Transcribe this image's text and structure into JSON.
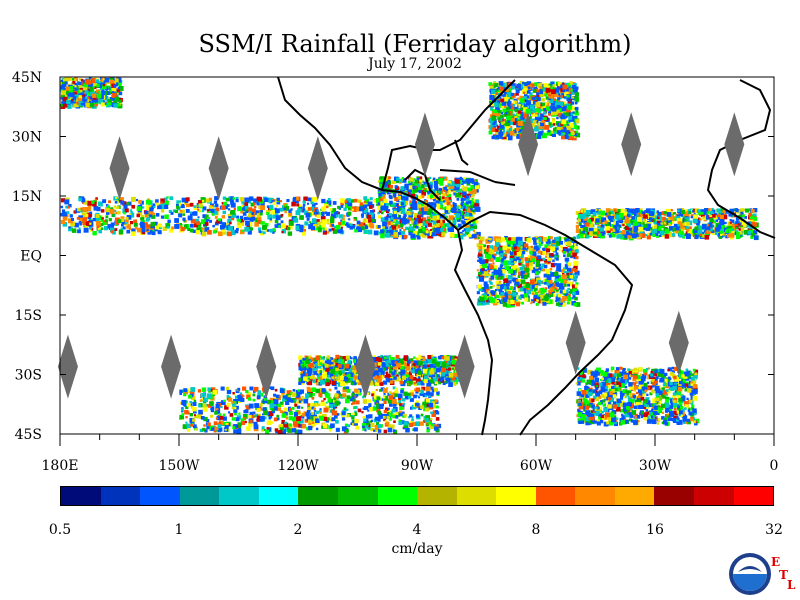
{
  "title": "SSM/I Rainfall (Ferriday algorithm)",
  "date": "July 17, 2002",
  "map": {
    "lat_labels": [
      "45N",
      "30N",
      "15N",
      "EQ",
      "15S",
      "30S",
      "45S"
    ],
    "lon_labels": [
      "180E",
      "150W",
      "120W",
      "90W",
      "60W",
      "30W",
      "0"
    ],
    "lat_range": [
      -45,
      45
    ],
    "lon_range": [
      -180,
      0
    ],
    "rain_bands": [
      {
        "name": "itcz",
        "lon_min": -180,
        "lon_max": -100,
        "lat_min": 6,
        "lat_max": 15
      },
      {
        "name": "central-america",
        "lon_min": -100,
        "lon_max": -75,
        "lat_min": 5,
        "lat_max": 20
      },
      {
        "name": "atlantic-itcz",
        "lon_min": -50,
        "lon_max": -5,
        "lat_min": 5,
        "lat_max": 12
      },
      {
        "name": "north-pacific-storm",
        "lon_min": -180,
        "lon_max": -165,
        "lat_min": 38,
        "lat_max": 45
      },
      {
        "name": "gulf-stream",
        "lon_min": -72,
        "lon_max": -50,
        "lat_min": 30,
        "lat_max": 44
      },
      {
        "name": "south-pacific-1",
        "lon_min": -120,
        "lon_max": -80,
        "lat_min": -32,
        "lat_max": -25
      },
      {
        "name": "south-pacific-2",
        "lon_min": -150,
        "lon_max": -85,
        "lat_min": -44,
        "lat_max": -33
      },
      {
        "name": "south-atlantic",
        "lon_min": -50,
        "lon_max": -20,
        "lat_min": -42,
        "lat_max": -28
      },
      {
        "name": "amazon",
        "lon_min": -75,
        "lon_max": -50,
        "lat_min": -12,
        "lat_max": 5
      }
    ]
  },
  "colorbar": {
    "colors": [
      "#000b7a",
      "#0033bb",
      "#0055ff",
      "#009999",
      "#00c8c8",
      "#00ffff",
      "#009900",
      "#00bb00",
      "#00ff00",
      "#b3b300",
      "#dddd00",
      "#ffff00",
      "#ff5500",
      "#ff8800",
      "#ffaa00",
      "#990000",
      "#cc0000",
      "#ff0000"
    ],
    "tick_labels": [
      "0.5",
      "1",
      "2",
      "4",
      "8",
      "16",
      "32"
    ],
    "units": "cm/day"
  },
  "logo": {
    "icon": "noaa-logo",
    "letters": [
      "E",
      "T",
      "L"
    ]
  }
}
